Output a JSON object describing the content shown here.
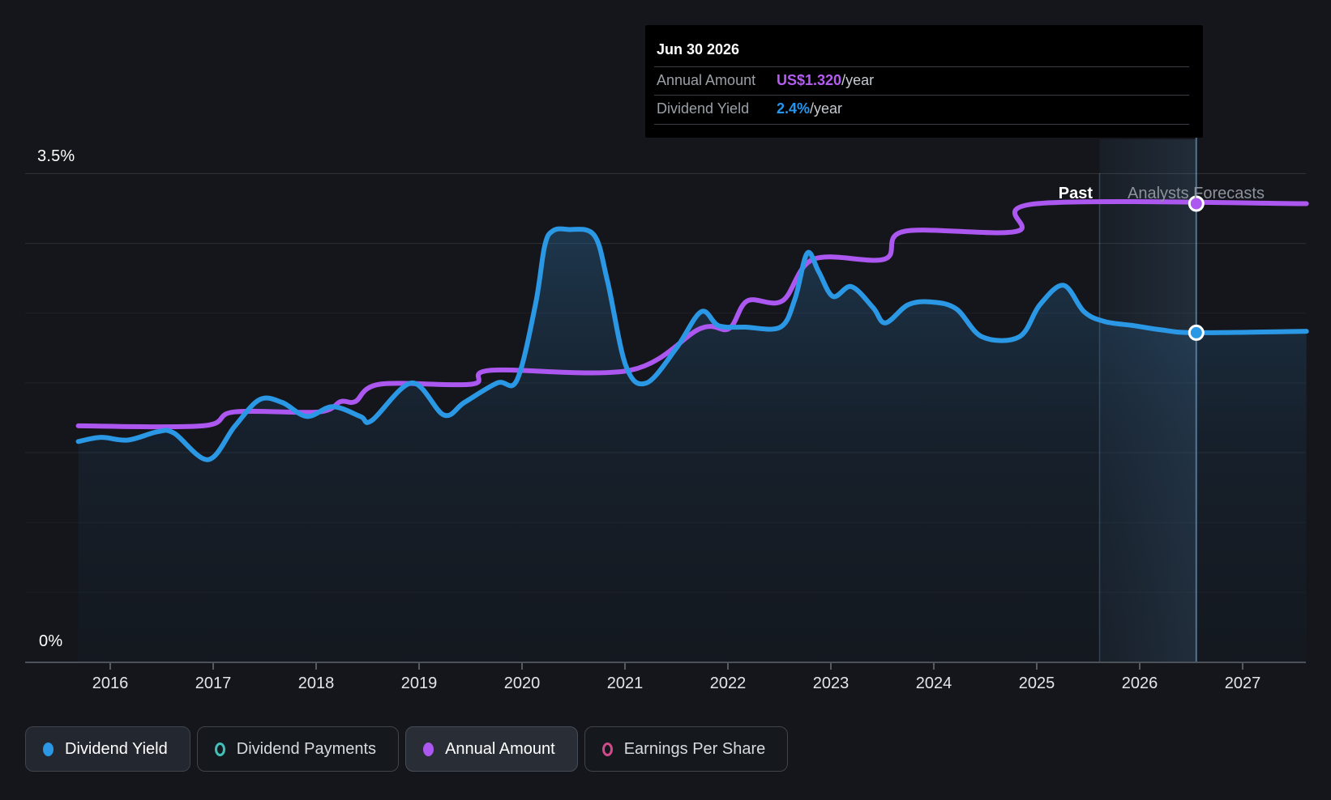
{
  "tooltip": {
    "date": "Jun 30 2026",
    "rows": [
      {
        "label": "Annual Amount",
        "value": "US$1.320",
        "suffix": "/year",
        "color": "#b55cf2"
      },
      {
        "label": "Dividend Yield",
        "value": "2.4%",
        "suffix": "/year",
        "color": "#2196f3"
      }
    ]
  },
  "labels": {
    "past": "Past",
    "forecast": "Analysts Forecasts",
    "y_top": "3.5%",
    "y_bottom": "0%"
  },
  "legend": {
    "items": [
      {
        "label": "Dividend Yield",
        "marker": "dot",
        "color": "#2b98e5",
        "style": "filled"
      },
      {
        "label": "Dividend Payments",
        "marker": "ring",
        "color": "#40c0b8",
        "style": "outline"
      },
      {
        "label": "Annual Amount",
        "marker": "dot",
        "color": "#ab57f0",
        "style": "hl"
      },
      {
        "label": "Earnings Per Share",
        "marker": "ring",
        "color": "#d14a8a",
        "style": "outline"
      }
    ]
  },
  "chart_data": {
    "type": "line",
    "x_axis": {
      "tick_labels": [
        "2016",
        "2017",
        "2018",
        "2019",
        "2020",
        "2021",
        "2022",
        "2023",
        "2024",
        "2025",
        "2026",
        "2027"
      ],
      "range_years": [
        2015.69,
        2027.62
      ]
    },
    "y_axis": {
      "unit": "%",
      "min": 0,
      "max": 3.5,
      "gridline_step": 0.5,
      "shown_tick_labels": [
        "3.5%",
        "0%"
      ]
    },
    "past_forecast_split_year": 2025.61,
    "highlight": {
      "date": "Jun 30 2026",
      "year": 2026.55,
      "annual_amount_usd": 1.32,
      "dividend_yield_pct": 2.36
    },
    "series": [
      {
        "name": "Dividend Yield",
        "unit": "%",
        "color": "#2b98e5",
        "area_fill": true,
        "points": [
          [
            2015.69,
            1.58
          ],
          [
            2015.91,
            1.61
          ],
          [
            2016.17,
            1.59
          ],
          [
            2016.46,
            1.65
          ],
          [
            2016.62,
            1.64
          ],
          [
            2016.95,
            1.45
          ],
          [
            2017.21,
            1.69
          ],
          [
            2017.45,
            1.88
          ],
          [
            2017.67,
            1.86
          ],
          [
            2017.91,
            1.76
          ],
          [
            2018.16,
            1.83
          ],
          [
            2018.43,
            1.76
          ],
          [
            2018.54,
            1.73
          ],
          [
            2018.93,
            2.0
          ],
          [
            2019.24,
            1.77
          ],
          [
            2019.44,
            1.86
          ],
          [
            2019.76,
            2.0
          ],
          [
            2019.95,
            2.02
          ],
          [
            2020.13,
            2.56
          ],
          [
            2020.22,
            2.98
          ],
          [
            2020.3,
            3.09
          ],
          [
            2020.45,
            3.1
          ],
          [
            2020.7,
            3.06
          ],
          [
            2020.83,
            2.73
          ],
          [
            2021.01,
            2.12
          ],
          [
            2021.21,
            2.0
          ],
          [
            2021.5,
            2.25
          ],
          [
            2021.74,
            2.51
          ],
          [
            2021.91,
            2.41
          ],
          [
            2022.17,
            2.4
          ],
          [
            2022.51,
            2.4
          ],
          [
            2022.65,
            2.6
          ],
          [
            2022.77,
            2.93
          ],
          [
            2022.88,
            2.8
          ],
          [
            2023.02,
            2.62
          ],
          [
            2023.2,
            2.69
          ],
          [
            2023.41,
            2.54
          ],
          [
            2023.53,
            2.43
          ],
          [
            2023.75,
            2.56
          ],
          [
            2023.98,
            2.58
          ],
          [
            2024.22,
            2.53
          ],
          [
            2024.47,
            2.33
          ],
          [
            2024.83,
            2.33
          ],
          [
            2025.03,
            2.56
          ],
          [
            2025.26,
            2.7
          ],
          [
            2025.46,
            2.51
          ],
          [
            2025.66,
            2.44
          ],
          [
            2025.95,
            2.41
          ],
          [
            2026.21,
            2.38
          ],
          [
            2026.55,
            2.36
          ],
          [
            2027.62,
            2.37
          ]
        ]
      },
      {
        "name": "Annual Amount",
        "unit": "US$/year",
        "color": "#ab57f0",
        "area_fill": false,
        "points": [
          [
            2015.69,
            0.68
          ],
          [
            2016.9,
            0.68
          ],
          [
            2017.2,
            0.72
          ],
          [
            2018.02,
            0.72
          ],
          [
            2018.24,
            0.75
          ],
          [
            2018.38,
            0.75
          ],
          [
            2018.62,
            0.8
          ],
          [
            2019.51,
            0.8
          ],
          [
            2019.7,
            0.84
          ],
          [
            2021.05,
            0.84
          ],
          [
            2021.73,
            0.96
          ],
          [
            2022.01,
            0.96
          ],
          [
            2022.19,
            1.04
          ],
          [
            2022.53,
            1.04
          ],
          [
            2022.83,
            1.16
          ],
          [
            2023.52,
            1.16
          ],
          [
            2023.71,
            1.24
          ],
          [
            2024.8,
            1.24
          ],
          [
            2025.0,
            1.32
          ],
          [
            2027.62,
            1.32
          ]
        ]
      }
    ]
  }
}
